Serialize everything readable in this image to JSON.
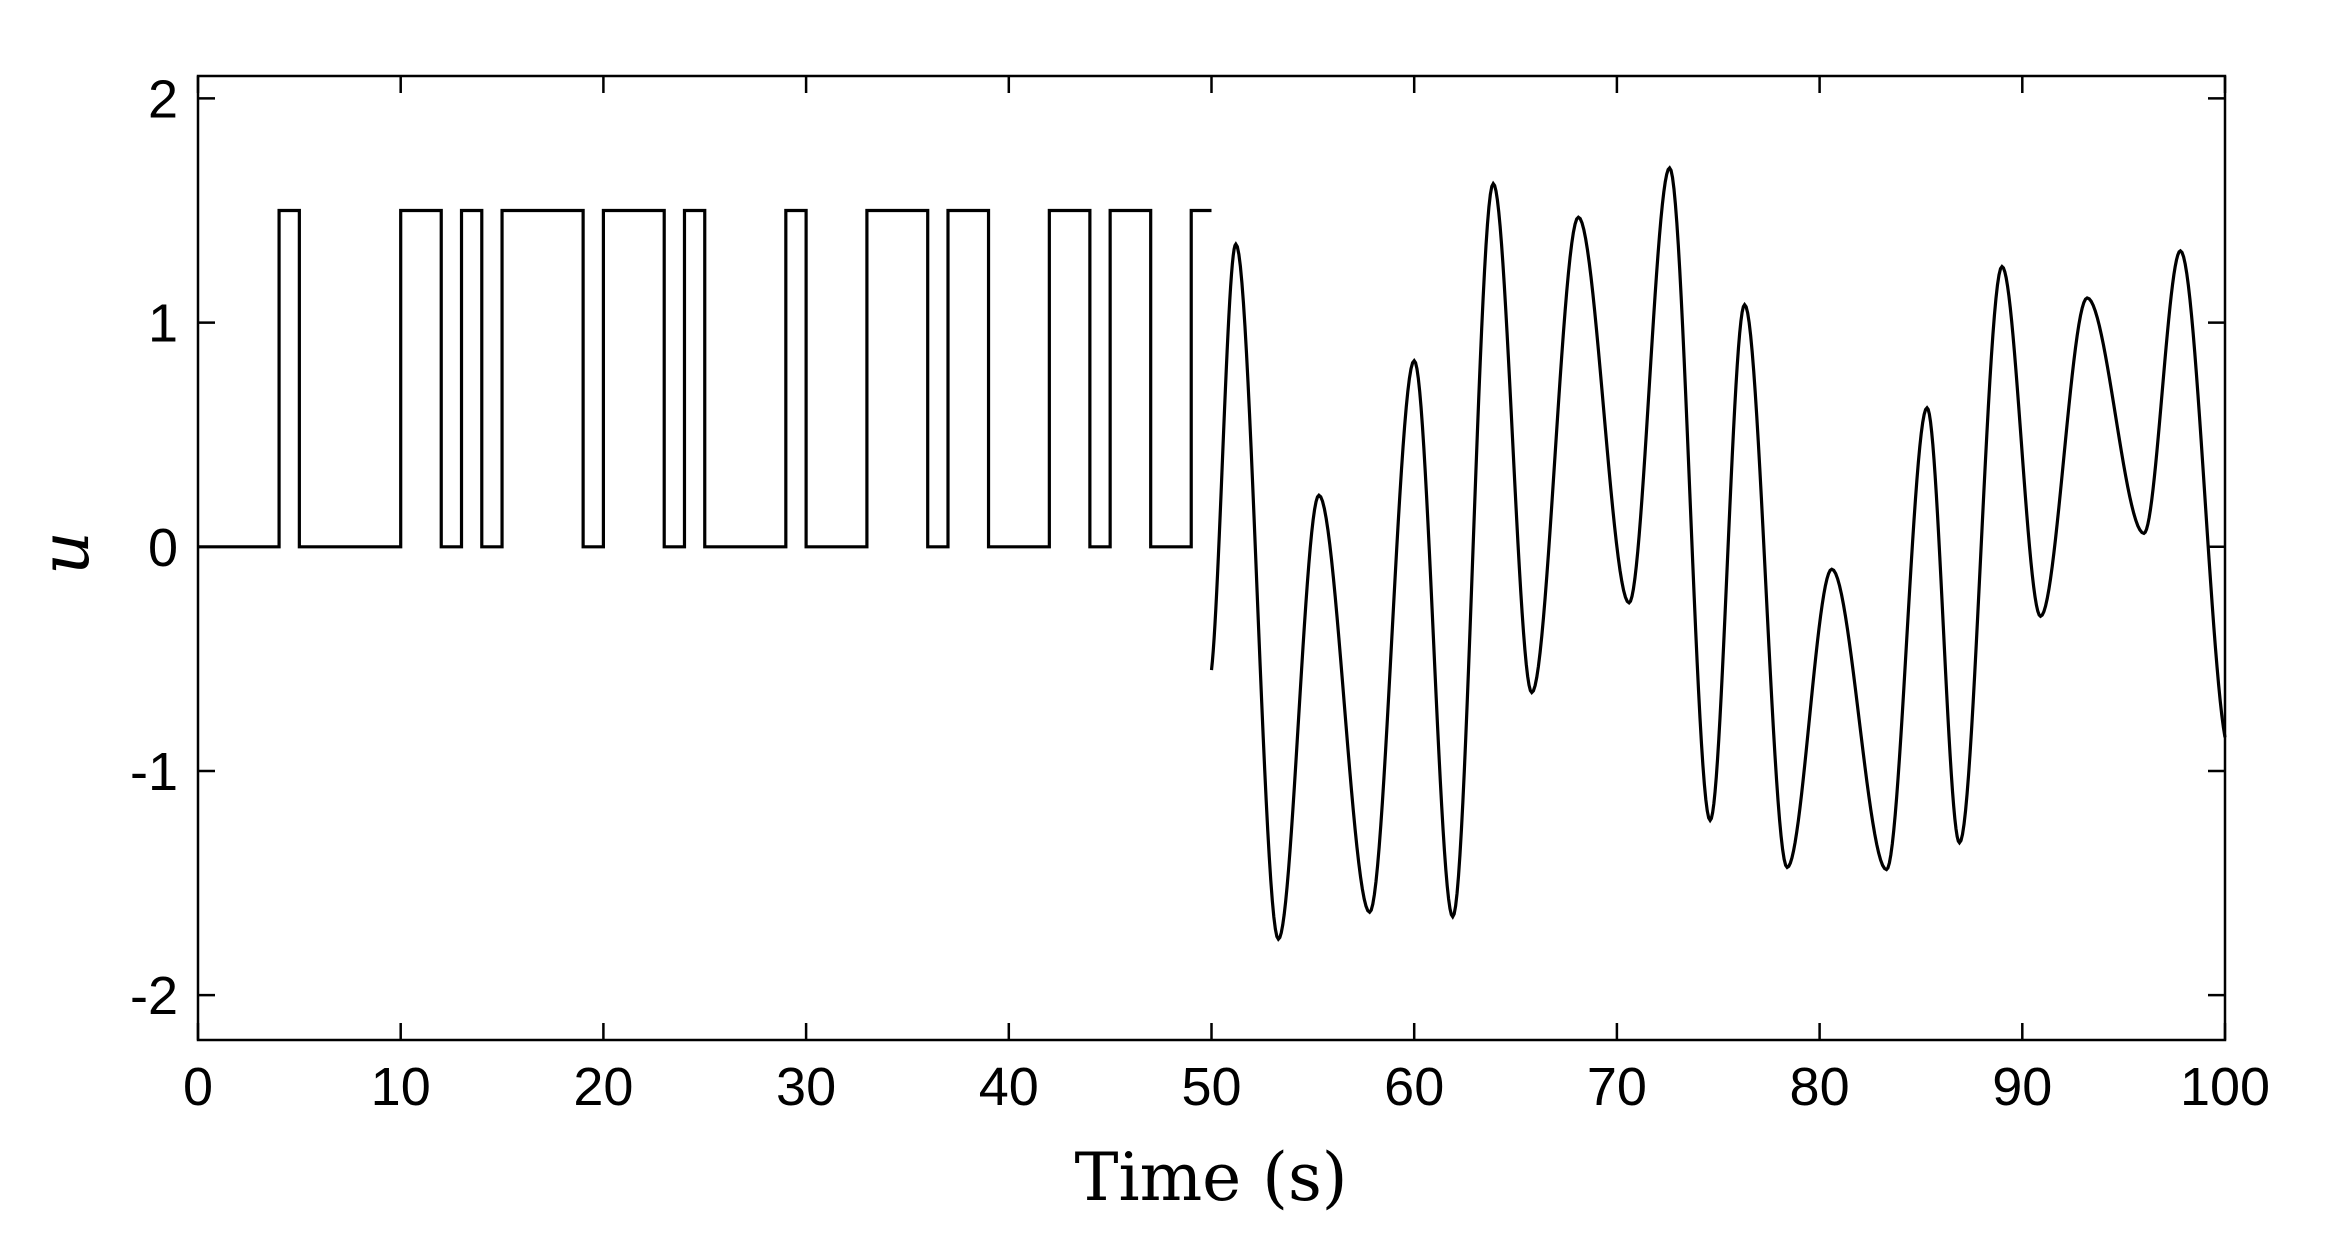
{
  "chart_data": {
    "type": "line",
    "title": "",
    "xlabel": "Time (s)",
    "ylabel": "u",
    "xlim": [
      0,
      100
    ],
    "ylim": [
      -2.2,
      2.1
    ],
    "xticks": [
      0,
      10,
      20,
      30,
      40,
      50,
      60,
      70,
      80,
      90,
      100
    ],
    "yticks": [
      -2,
      -1,
      0,
      1,
      2
    ],
    "xtick_labels": [
      "0",
      "10",
      "20",
      "30",
      "40",
      "50",
      "60",
      "70",
      "80",
      "90",
      "100"
    ],
    "ytick_labels": [
      "-2",
      "-1",
      "0",
      "1",
      "2"
    ],
    "grid": false,
    "legend": "none",
    "line_color": "#000000",
    "series": [
      {
        "segment": "pulse",
        "x": [
          0,
          4,
          4,
          5,
          5,
          10,
          10,
          12,
          12,
          13,
          13,
          14,
          14,
          15,
          15,
          19,
          19,
          20,
          20,
          23,
          23,
          24,
          24,
          25,
          25,
          29,
          29,
          30,
          30,
          33,
          33,
          36,
          36,
          37,
          37,
          39,
          39,
          42,
          42,
          44,
          44,
          45,
          45,
          47,
          47,
          49,
          49,
          50
        ],
        "y": [
          0,
          0,
          1.5,
          1.5,
          0,
          0,
          1.5,
          1.5,
          0,
          0,
          1.5,
          1.5,
          0,
          0,
          1.5,
          1.5,
          0,
          0,
          1.5,
          1.5,
          0,
          0,
          1.5,
          1.5,
          0,
          0,
          1.5,
          1.5,
          0,
          0,
          1.5,
          1.5,
          0,
          0,
          1.5,
          1.5,
          0,
          0,
          1.5,
          1.5,
          0,
          0,
          1.5,
          1.5,
          0,
          0,
          1.5,
          1.5
        ]
      },
      {
        "segment": "oscillation",
        "x": [
          50,
          51.2,
          53.3,
          55.3,
          57.8,
          60.0,
          61.9,
          63.9,
          65.8,
          68.1,
          70.6,
          72.6,
          74.6,
          76.3,
          78.4,
          80.6,
          83.3,
          85.3,
          86.9,
          89.0,
          90.9,
          93.2,
          96.0,
          97.8,
          100
        ],
        "y": [
          -0.55,
          1.35,
          -1.75,
          0.23,
          -1.63,
          0.83,
          -1.65,
          1.62,
          -0.65,
          1.47,
          -0.25,
          1.69,
          -1.22,
          1.08,
          -1.43,
          -0.1,
          -1.44,
          0.62,
          -1.32,
          1.25,
          -0.31,
          1.11,
          0.06,
          1.32,
          -0.85
        ]
      }
    ]
  }
}
